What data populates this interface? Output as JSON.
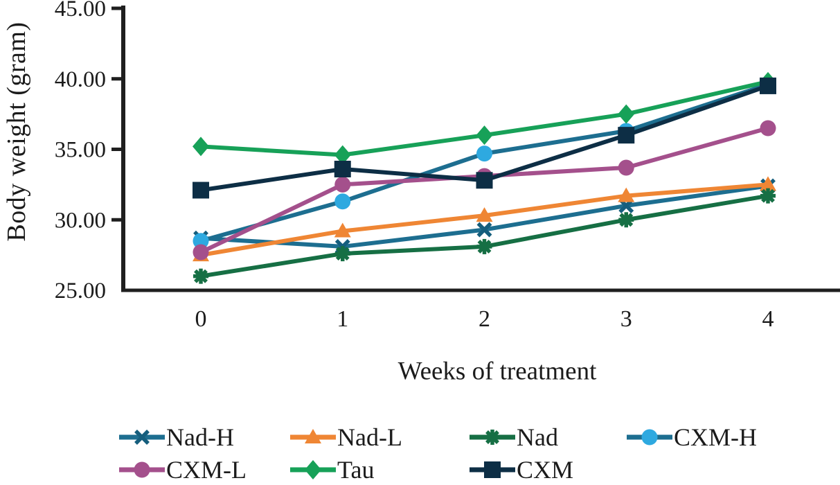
{
  "chart_data": {
    "type": "line",
    "title": "",
    "xlabel": "Weeks of treatment",
    "ylabel": "Body weight (gram)",
    "x": [
      0,
      1,
      2,
      3,
      4
    ],
    "xtick_labels": [
      "0",
      "1",
      "2",
      "3",
      "4"
    ],
    "ytick_labels": [
      "45.00",
      "40.00",
      "35.00",
      "30.00",
      "25.00"
    ],
    "ylim": [
      25,
      45
    ],
    "xlim": [
      0,
      4
    ],
    "grid": false,
    "legend_position": "bottom",
    "axis_color": "#1f1f1f",
    "series": [
      {
        "name": "Nad-H",
        "marker": "x",
        "line_color": "#1d6e90",
        "marker_color": "#155e7d",
        "values": [
          28.7,
          28.1,
          29.3,
          31.0,
          32.4
        ]
      },
      {
        "name": "Nad-L",
        "marker": "triangle",
        "line_color": "#ef8634",
        "marker_color": "#ef8634",
        "values": [
          27.5,
          29.2,
          30.3,
          31.7,
          32.5
        ]
      },
      {
        "name": "Nad",
        "marker": "asterisk",
        "line_color": "#166f44",
        "marker_color": "#166f44",
        "values": [
          26.0,
          27.6,
          28.1,
          30.0,
          31.7
        ]
      },
      {
        "name": "CXM-H",
        "marker": "circle",
        "line_color": "#1d6e90",
        "marker_color": "#2ea9e0",
        "values": [
          28.5,
          31.3,
          34.7,
          36.3,
          39.6
        ]
      },
      {
        "name": "CXM-L",
        "marker": "circle",
        "line_color": "#a4508c",
        "marker_color": "#a4508c",
        "values": [
          27.7,
          32.5,
          33.1,
          33.7,
          36.5
        ]
      },
      {
        "name": "Tau",
        "marker": "diamond",
        "line_color": "#17a158",
        "marker_color": "#17a158",
        "values": [
          35.2,
          34.6,
          36.0,
          37.5,
          39.8
        ]
      },
      {
        "name": "CXM",
        "marker": "square",
        "line_color": "#0d2e45",
        "marker_color": "#0d2e45",
        "values": [
          32.1,
          33.6,
          32.8,
          36.0,
          39.5
        ]
      }
    ],
    "legend_rows": [
      [
        "Nad-H",
        "Nad-L",
        "Nad",
        "CXM-H"
      ],
      [
        "CXM-L",
        "Tau",
        "CXM"
      ]
    ]
  }
}
